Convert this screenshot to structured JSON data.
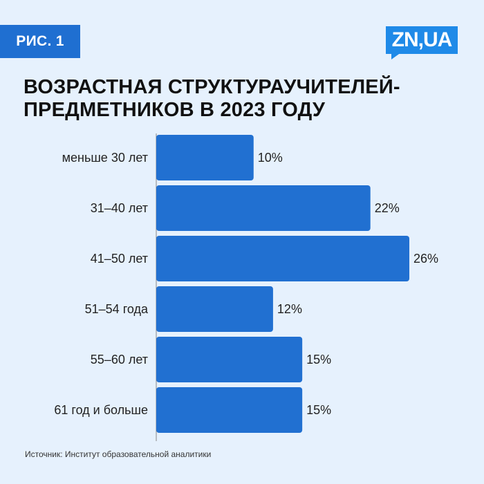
{
  "badge": {
    "label": "РИС. 1"
  },
  "logo": {
    "text": "ZN,UA"
  },
  "title": {
    "line1": "ВОЗРАСТНАЯ СТРУКТУРАУЧИТЕЛЕЙ-",
    "line2": "ПРЕДМЕТНИКОВ В 2023 ГОДУ"
  },
  "source": {
    "text": "Источник: Институт образовательной аналитики"
  },
  "colors": {
    "bar": "#2170d1",
    "background": "#e6f1fd",
    "axis": "#888888",
    "badge": "#1f6fd1",
    "logo": "#1f8ae8"
  },
  "chart_data": {
    "type": "bar",
    "orientation": "horizontal",
    "categories": [
      "меньше 30 лет",
      "31–40 лет",
      "41–50 лет",
      "51–54 года",
      "55–60 лет",
      "61 год и больше"
    ],
    "values": [
      10,
      22,
      26,
      12,
      15,
      15
    ],
    "data_labels": [
      "10%",
      "22%",
      "26%",
      "12%",
      "15%",
      "15%"
    ],
    "unit": "%",
    "xlim": [
      0,
      26
    ],
    "grid": false,
    "legend": "none"
  }
}
